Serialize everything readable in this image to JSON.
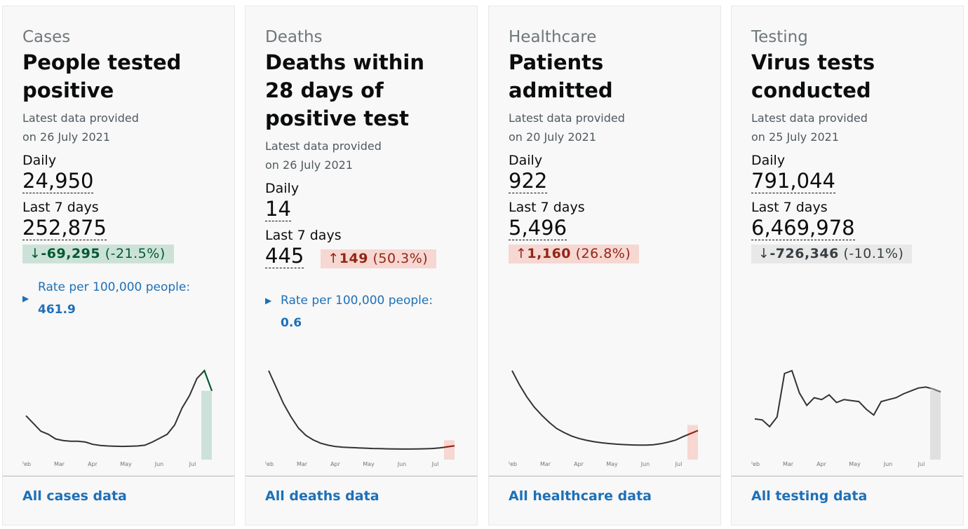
{
  "cards": [
    {
      "category": "Cases",
      "title": "People tested positive",
      "latest_label": "Latest data provided",
      "latest_date": "on 26 July 2021",
      "daily_label": "Daily",
      "daily": "24,950",
      "last7_label": "Last 7 days",
      "last7": "252,875",
      "change_arrow": "↓",
      "change": "-69,295",
      "change_pct": "(-21.5%)",
      "change_bg": "#cce2d8",
      "change_fg": "#005a30",
      "rate_label": "Rate per 100,000 people:",
      "rate": "461.9",
      "link": "All cases data",
      "chart": {
        "type": "line",
        "months": [
          "Feb",
          "Mar",
          "Apr",
          "May",
          "Jun",
          "Jul"
        ],
        "color": "#333333",
        "highlight_color": "#005a30",
        "highlight_fill": "#cce2d8",
        "values": [
          22000,
          17000,
          12000,
          10000,
          7000,
          6000,
          5500,
          5500,
          5000,
          3500,
          2800,
          2500,
          2300,
          2200,
          2300,
          2500,
          3000,
          5000,
          7500,
          10000,
          16000,
          27000,
          35000,
          46000,
          51000,
          38000
        ]
      }
    },
    {
      "category": "Deaths",
      "title": "Deaths within 28 days of positive test",
      "latest_label": "Latest data provided",
      "latest_date": "on 26 July 2021",
      "daily_label": "Daily",
      "daily": "14",
      "last7_label": "Last 7 days",
      "last7": "445",
      "change_arrow": "↑",
      "change": "149",
      "change_pct": "(50.3%)",
      "change_bg": "#f6d7d2",
      "change_fg": "#942514",
      "rate_label": "Rate per 100,000 people:",
      "rate": "0.6",
      "link": "All deaths data",
      "chart": {
        "type": "line",
        "months": [
          "Feb",
          "Mar",
          "Apr",
          "May",
          "Jun",
          "Jul"
        ],
        "color": "#333333",
        "highlight_color": "#942514",
        "highlight_fill": "#f6d7d2",
        "values": [
          1200,
          950,
          700,
          500,
          330,
          220,
          150,
          100,
          70,
          50,
          40,
          35,
          30,
          25,
          20,
          18,
          15,
          14,
          12,
          12,
          14,
          16,
          20,
          30,
          45,
          60
        ]
      }
    },
    {
      "category": "Healthcare",
      "title": "Patients admitted",
      "latest_label": "Latest data provided",
      "latest_date": "on 20 July 2021",
      "daily_label": "Daily",
      "daily": "922",
      "last7_label": "Last 7 days",
      "last7": "5,496",
      "change_arrow": "↑",
      "change": "1,160",
      "change_pct": "(26.8%)",
      "change_bg": "#f6d7d2",
      "change_fg": "#942514",
      "link": "All healthcare data",
      "chart": {
        "type": "line",
        "months": [
          "Feb",
          "Mar",
          "Apr",
          "May",
          "Jun",
          "Jul"
        ],
        "color": "#333333",
        "highlight_color": "#942514",
        "highlight_fill": "#f6d7d2",
        "values": [
          3900,
          3200,
          2600,
          2100,
          1700,
          1350,
          1050,
          850,
          680,
          560,
          470,
          400,
          350,
          310,
          280,
          260,
          240,
          230,
          230,
          250,
          300,
          380,
          480,
          650,
          800,
          950
        ]
      }
    },
    {
      "category": "Testing",
      "title": "Virus tests conducted",
      "latest_label": "Latest data provided",
      "latest_date": "on 25 July 2021",
      "daily_label": "Daily",
      "daily": "791,044",
      "last7_label": "Last 7 days",
      "last7": "6,469,978",
      "change_arrow": "↓",
      "change": "-726,346",
      "change_pct": "(-10.1%)",
      "change_bg": "#e8e8e8",
      "change_fg": "#383f43",
      "link": "All testing data",
      "chart": {
        "type": "line",
        "months": [
          "Feb",
          "Mar",
          "Apr",
          "May",
          "Jun",
          "Jul"
        ],
        "color": "#333333",
        "highlight_color": "#6f777b",
        "highlight_fill": "#e0e0e0",
        "values": [
          680000,
          670000,
          600000,
          700000,
          1150000,
          1180000,
          950000,
          820000,
          900000,
          880000,
          930000,
          850000,
          880000,
          870000,
          860000,
          780000,
          720000,
          860000,
          880000,
          900000,
          940000,
          970000,
          1000000,
          1010000,
          990000,
          960000
        ]
      }
    }
  ]
}
